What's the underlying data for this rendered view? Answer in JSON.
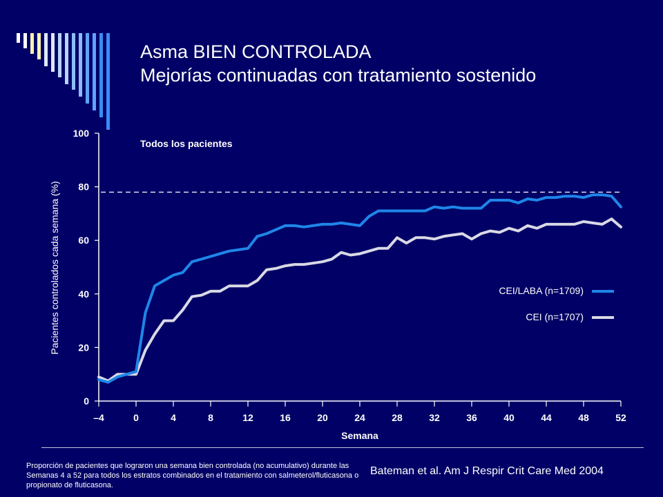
{
  "slide": {
    "title_line1": "Asma BIEN CONTROLADA",
    "title_line2": "Mejorías continuadas con tratamiento sostenido",
    "footnote": "Proporción de pacientes que lograron una semana bien controlada (no acumulativo) durante las Semanas 4 a 52 para todos los estratos combinados en el tratamiento con salmeterol/fluticasona o propionato de fluticasona.",
    "citation": "Bateman et al. Am J Respir Crit Care Med 2004"
  },
  "colors": {
    "background": "#000066",
    "ceilaba": "#1f86e8",
    "cei": "#d9d9e6",
    "deco_bars": [
      "#ffffff",
      "#fff2b0",
      "#dfe8ff",
      "#b8d4ff",
      "#8cbcff",
      "#5fa2ff",
      "#3a8cf5",
      "#1f7ae6"
    ]
  },
  "chart_data": {
    "type": "line",
    "subtitle": "Todos los pacientes",
    "xlabel": "Semana",
    "ylabel": "Pacientes controlados cada semana (%)",
    "xlim": [
      -4,
      52
    ],
    "ylim": [
      0,
      100
    ],
    "xticks": [
      -4,
      0,
      4,
      8,
      12,
      16,
      20,
      24,
      28,
      32,
      36,
      40,
      44,
      48,
      52
    ],
    "xtick_labels": [
      "–4",
      "0",
      "4",
      "8",
      "12",
      "16",
      "20",
      "24",
      "28",
      "32",
      "36",
      "40",
      "44",
      "48",
      "52"
    ],
    "yticks": [
      0,
      20,
      40,
      60,
      80,
      100
    ],
    "reference_line_y": 78,
    "grid": false,
    "legend_position": "right",
    "x": [
      -4,
      -3,
      -2,
      -1,
      0,
      1,
      2,
      3,
      4,
      5,
      6,
      7,
      8,
      9,
      10,
      11,
      12,
      13,
      14,
      15,
      16,
      17,
      18,
      19,
      20,
      21,
      22,
      23,
      24,
      25,
      26,
      27,
      28,
      29,
      30,
      31,
      32,
      33,
      34,
      35,
      36,
      37,
      38,
      39,
      40,
      41,
      42,
      43,
      44,
      45,
      46,
      47,
      48,
      49,
      50,
      51,
      52
    ],
    "series": [
      {
        "name": "CEI/LABA (n=1709)",
        "values": [
          8,
          7,
          9,
          10,
          11,
          33,
          43,
          45,
          47,
          48,
          52,
          53,
          54,
          55,
          56,
          56.5,
          57,
          61.5,
          62.5,
          64,
          65.5,
          65.5,
          65,
          65.5,
          66,
          66,
          66.5,
          66,
          65.5,
          69,
          71,
          71,
          71,
          71,
          71,
          71,
          72.5,
          72,
          72.5,
          72,
          72,
          72,
          75,
          75,
          75,
          74,
          75.5,
          75,
          76,
          76,
          76.5,
          76.5,
          76,
          77,
          77,
          76.5,
          72.5
        ]
      },
      {
        "name": "CEI (n=1707)",
        "values": [
          9,
          7.5,
          10,
          10,
          10,
          19,
          25,
          30,
          30,
          34,
          39,
          39.5,
          41,
          41,
          43,
          43,
          43,
          45,
          49,
          49.5,
          50.5,
          51,
          51,
          51.5,
          52,
          53,
          55.5,
          54.5,
          55,
          56,
          57,
          57,
          61,
          59,
          61,
          61,
          60.5,
          61.5,
          62,
          62.5,
          60.5,
          62.5,
          63.5,
          63,
          64.5,
          63.5,
          65.5,
          64.5,
          66,
          66,
          66,
          66,
          67,
          66.5,
          66,
          68,
          65
        ]
      }
    ]
  }
}
